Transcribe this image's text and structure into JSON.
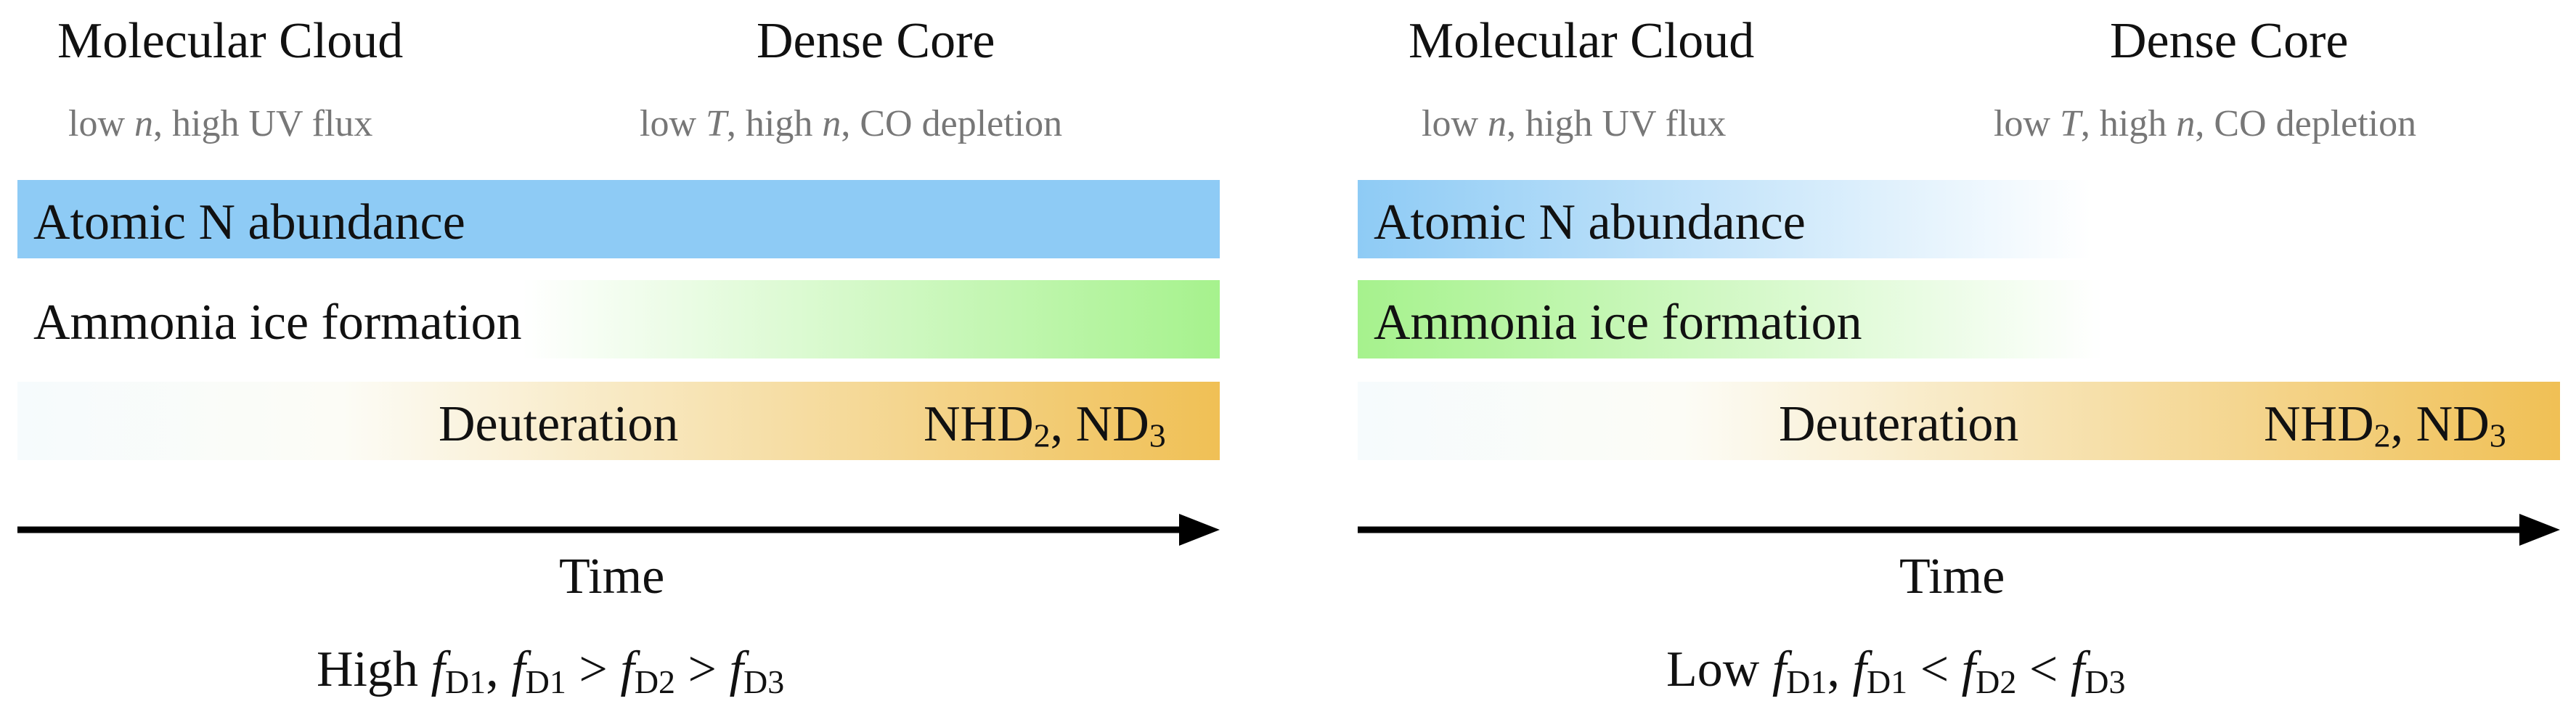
{
  "panels": [
    {
      "stages": [
        {
          "title": "Molecular Cloud",
          "subtitle_parts": [
            "low ",
            "n",
            ",",
            " high UV flux"
          ]
        },
        {
          "title": "Dense Core",
          "subtitle_parts": [
            "low ",
            "T",
            ", high ",
            "n",
            ",",
            " CO depletion"
          ]
        }
      ],
      "bars": [
        {
          "label": "Atomic N abundance",
          "color": "#8ecbf5",
          "gradient": "solid"
        },
        {
          "label": "Ammonia ice formation",
          "color": "#a6f28d",
          "gradient": "increasing"
        },
        {
          "label": "Deuteration",
          "color": "#f0c055",
          "gradient": "increasing",
          "products": [
            "NHD",
            "2",
            ", ND",
            "3"
          ]
        }
      ],
      "time_label": "Time",
      "relation": [
        "High ",
        "f",
        "D1",
        ", ",
        "f",
        "D1",
        " > ",
        "f",
        "D2",
        " > ",
        "f",
        "D3"
      ]
    },
    {
      "stages": [
        {
          "title": "Molecular Cloud",
          "subtitle_parts": [
            "low ",
            "n",
            ",",
            " high UV flux"
          ]
        },
        {
          "title": "Dense Core",
          "subtitle_parts": [
            "low ",
            "T",
            ", high ",
            "n",
            ",",
            " CO depletion"
          ]
        }
      ],
      "bars": [
        {
          "label": "Atomic N abundance",
          "color": "#8ecbf5",
          "gradient": "decreasing"
        },
        {
          "label": "Ammonia ice formation",
          "color": "#a6f28d",
          "gradient": "decreasing"
        },
        {
          "label": "Deuteration",
          "color": "#f0c055",
          "gradient": "increasing",
          "products": [
            "NHD",
            "2",
            ", ND",
            "3"
          ]
        }
      ],
      "time_label": "Time",
      "relation": [
        "Low ",
        "f",
        "D1",
        ", ",
        "f",
        "D1",
        " < ",
        "f",
        "D2",
        " < ",
        "f",
        "D3"
      ]
    }
  ]
}
